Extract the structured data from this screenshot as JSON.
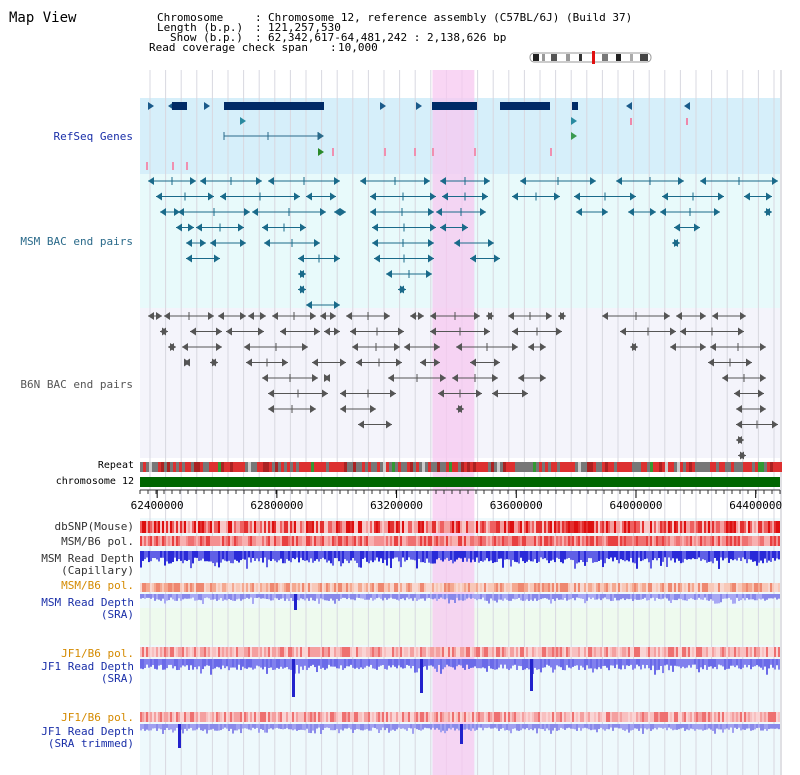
{
  "view": {
    "title": "Map View"
  },
  "info": [
    {
      "key": "Chromosome",
      "sep": ":",
      "value": "Chromosome 12, reference assembly (C57BL/6J) (Build 37)"
    },
    {
      "key": "Length (b.p.)",
      "sep": ":",
      "value": "121,257,530"
    },
    {
      "key": "Show (b.p.)",
      "sep": ":",
      "value": "62,342,617-64,481,242 : 2,138,626 bp"
    },
    {
      "key": "Read coverage check span",
      "sep": ":",
      "value": "10,000"
    }
  ],
  "tracks": [
    {
      "id": "refseq",
      "label": "RefSeq Genes",
      "color": "#1a2fa8"
    },
    {
      "id": "msm-bac",
      "label": "MSM BAC end pairs",
      "color": "#2a6a8a"
    },
    {
      "id": "b6n-bac",
      "label": "B6N BAC end pairs",
      "color": "#555555"
    },
    {
      "id": "repeat",
      "label": "Repeat",
      "color": "#000000"
    },
    {
      "id": "chromosome",
      "label": "chromosome 12",
      "color": "#000000"
    }
  ],
  "axis": {
    "ticks": [
      "62400000",
      "62800000",
      "63200000",
      "63600000",
      "64000000",
      "64400000"
    ],
    "tick_values": [
      62400000,
      62800000,
      63200000,
      63600000,
      64000000,
      64400000
    ],
    "range": [
      62342617,
      64481242
    ]
  },
  "highlight": {
    "start": 63320000,
    "end": 63460000
  },
  "lower_tracks": [
    {
      "id": "dbsnp",
      "lines": [
        "dbSNP(Mouse)"
      ],
      "color": "#333333"
    },
    {
      "id": "msm-pol-1",
      "lines": [
        "MSM/B6 pol."
      ],
      "color": "#333333"
    },
    {
      "id": "msm-depth-cap",
      "lines": [
        "MSM Read Depth",
        "(Capillary)"
      ],
      "color": "#333333"
    },
    {
      "id": "msm-pol-2",
      "lines": [
        "MSM/B6 pol."
      ],
      "color": "#d48a00"
    },
    {
      "id": "msm-depth-sra",
      "lines": [
        "MSM Read Depth",
        "(SRA)"
      ],
      "color": "#1a2fa8"
    },
    {
      "id": "jf1-pol-1",
      "lines": [
        "JF1/B6 pol."
      ],
      "color": "#d48a00"
    },
    {
      "id": "jf1-depth-sra",
      "lines": [
        "JF1 Read Depth",
        "(SRA)"
      ],
      "color": "#1a2fa8"
    },
    {
      "id": "jf1-pol-2",
      "lines": [
        "JF1/B6 pol."
      ],
      "color": "#d48a00"
    },
    {
      "id": "jf1-depth-trim",
      "lines": [
        "JF1 Read Depth",
        "(SRA trimmed)"
      ],
      "color": "#1a2fa8"
    }
  ],
  "colors": {
    "refseq_bg": "#d6effa",
    "bac_bg": "#e8fafb",
    "highlight": "#f7c8f0",
    "gene": "#002a66",
    "chromosome_bar": "#006600"
  }
}
